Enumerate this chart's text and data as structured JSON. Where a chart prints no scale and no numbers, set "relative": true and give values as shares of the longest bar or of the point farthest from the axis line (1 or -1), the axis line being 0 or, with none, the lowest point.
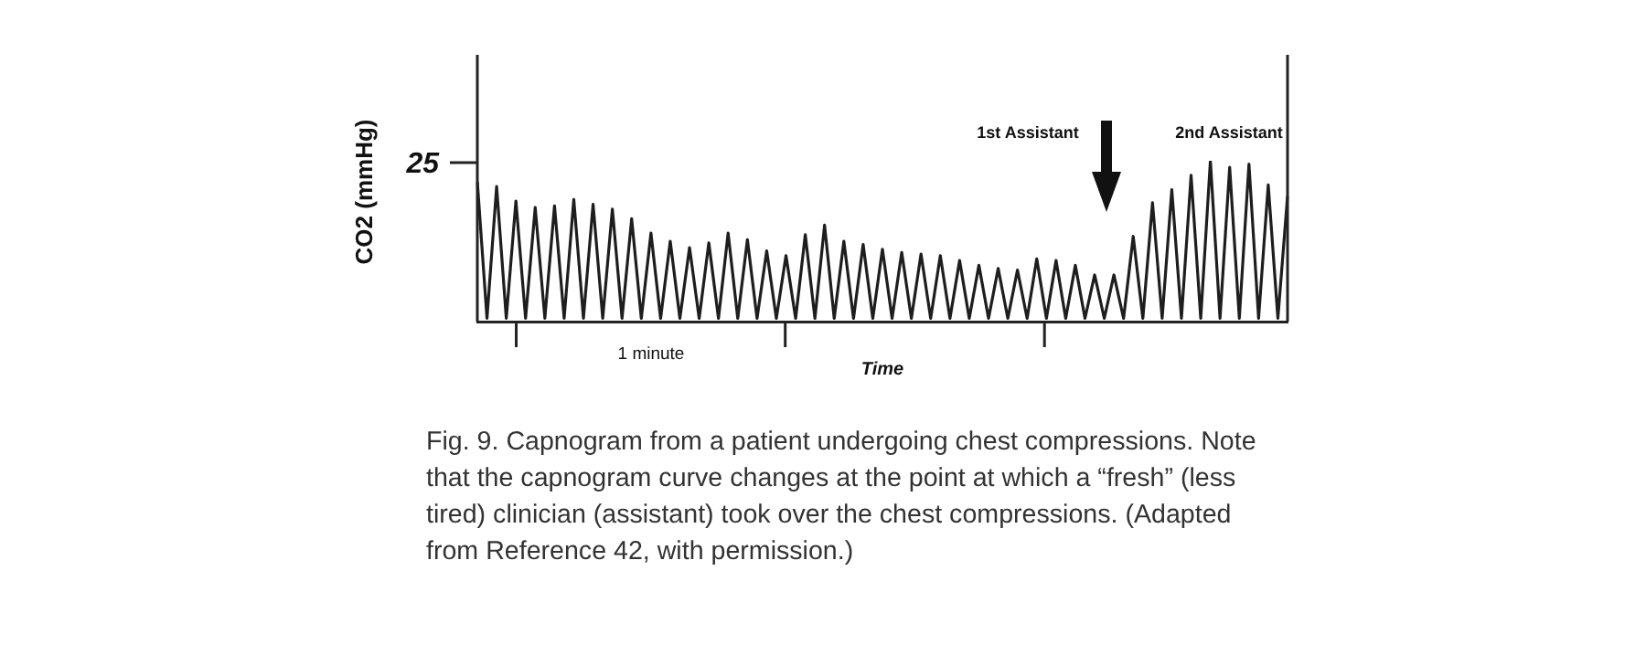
{
  "chart_data": {
    "type": "line",
    "relative": true,
    "ylabel": "CO2 (mmHg)",
    "xlabel": "Time",
    "color": "#1e1e1e",
    "categories": [
      null,
      null,
      null,
      null,
      null,
      null,
      null,
      null,
      null,
      null,
      null,
      null,
      null,
      null,
      null,
      null,
      null,
      null,
      null,
      null,
      null,
      null,
      null,
      null,
      null,
      null,
      null,
      null,
      null,
      null,
      null,
      null,
      null,
      null,
      null,
      null,
      null,
      null,
      null,
      null,
      null,
      null,
      null,
      null,
      null,
      null,
      null,
      null,
      null,
      null,
      null,
      null,
      null,
      null,
      null,
      null,
      null,
      null,
      null,
      null,
      null,
      null,
      null,
      null,
      null,
      null,
      null,
      null,
      null,
      null,
      null,
      null,
      null,
      null,
      null,
      null,
      null,
      null,
      null,
      null,
      null,
      null,
      null,
      null,
      null
    ],
    "values": [
      0.87,
      0.02,
      0.84,
      0.02,
      0.75,
      0.02,
      0.71,
      0.02,
      0.72,
      0.02,
      0.76,
      0.02,
      0.73,
      0.02,
      0.7,
      0.02,
      0.64,
      0.02,
      0.55,
      0.02,
      0.5,
      0.02,
      0.46,
      0.02,
      0.49,
      0.02,
      0.55,
      0.02,
      0.51,
      0.02,
      0.44,
      0.02,
      0.41,
      0.02,
      0.54,
      0.02,
      0.6,
      0.02,
      0.5,
      0.02,
      0.48,
      0.02,
      0.45,
      0.02,
      0.43,
      0.02,
      0.42,
      0.02,
      0.41,
      0.02,
      0.38,
      0.02,
      0.35,
      0.02,
      0.33,
      0.02,
      0.32,
      0.02,
      0.39,
      0.02,
      0.38,
      0.02,
      0.35,
      0.02,
      0.29,
      0.02,
      0.29,
      0.02,
      0.53,
      0.02,
      0.74,
      0.02,
      0.82,
      0.02,
      0.91,
      0.02,
      1.0,
      0.02,
      0.96,
      0.02,
      0.98,
      0.02,
      0.85,
      0.02,
      0.78
    ],
    "annotations": [
      "25",
      "1st Assistant",
      "2nd Assistant",
      "1 minute",
      "Fig. 9. Capnogram from a patient undergoing chest compressions. Note that the capnogram curve changes at the point at which a “fresh” (less tired) clinician (assistant) took over the chest compressions. (Adapted from Reference 42, with permission.)"
    ]
  }
}
